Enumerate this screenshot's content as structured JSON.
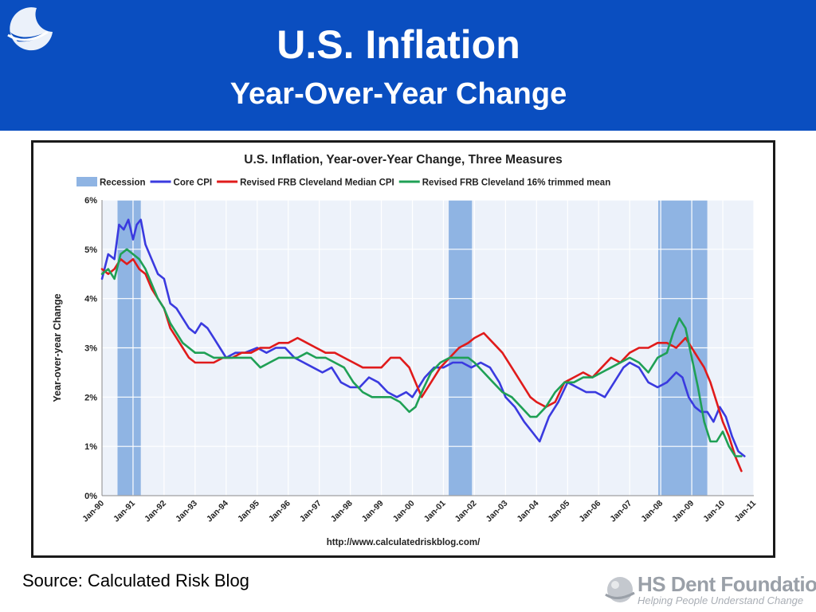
{
  "slide": {
    "title": "U.S. Inflation",
    "subtitle": "Year-Over-Year Change",
    "source": "Source: Calculated Risk Blog",
    "logo_name": "HS Dent Foundation",
    "logo_tagline": "Helping People Understand Change",
    "header_color": "#0a4ec0"
  },
  "chart_data": {
    "type": "line",
    "title": "U.S. Inflation, Year-over-Year Change, Three Measures",
    "ylabel": "Year-over-year Change",
    "xlabel": "",
    "url": "http://www.calculatedriskblog.com/",
    "ylim": [
      0,
      6
    ],
    "xlim": [
      1990.0,
      2011.0
    ],
    "yticks": [
      0,
      1,
      2,
      3,
      4,
      5,
      6
    ],
    "ytick_labels": [
      "0%",
      "1%",
      "2%",
      "3%",
      "4%",
      "5%",
      "6%"
    ],
    "xticks": [
      1990,
      1991,
      1992,
      1993,
      1994,
      1995,
      1996,
      1997,
      1998,
      1999,
      2000,
      2001,
      2002,
      2003,
      2004,
      2005,
      2006,
      2007,
      2008,
      2009,
      2010,
      2011
    ],
    "xtick_labels": [
      "Jan-90",
      "Jan-91",
      "Jan-92",
      "Jan-93",
      "Jan-94",
      "Jan-95",
      "Jan-96",
      "Jan-97",
      "Jan-98",
      "Jan-99",
      "Jan-00",
      "Jan-01",
      "Jan-02",
      "Jan-03",
      "Jan-04",
      "Jan-05",
      "Jan-06",
      "Jan-07",
      "Jan-08",
      "Jan-09",
      "Jan-10",
      "Jan-11"
    ],
    "grid": true,
    "legend_position": "top",
    "recessions": [
      {
        "label": "Recession",
        "start": 1990.5,
        "end": 1991.25
      },
      {
        "label": "Recession",
        "start": 2001.17,
        "end": 2001.92
      },
      {
        "label": "Recession",
        "start": 2007.92,
        "end": 2009.5
      }
    ],
    "legend": [
      {
        "name": "Recession",
        "color": "#8fb4e3",
        "kind": "box"
      },
      {
        "name": "Core CPI",
        "color": "#3a3adf",
        "kind": "line"
      },
      {
        "name": "Revised FRB Cleveland Median CPI",
        "color": "#e01b1b",
        "kind": "line"
      },
      {
        "name": "Revised FRB Cleveland 16% trimmed mean",
        "color": "#1fa055",
        "kind": "line"
      }
    ],
    "series": [
      {
        "name": "Core CPI",
        "color": "#3a3adf",
        "x": [
          1990.0,
          1990.2,
          1990.4,
          1990.55,
          1990.7,
          1990.85,
          1991.0,
          1991.12,
          1991.25,
          1991.4,
          1991.6,
          1991.8,
          1992.0,
          1992.2,
          1992.4,
          1992.6,
          1992.8,
          1993.0,
          1993.2,
          1993.4,
          1993.6,
          1993.8,
          1994.0,
          1994.3,
          1994.6,
          1995.0,
          1995.3,
          1995.6,
          1995.9,
          1996.2,
          1996.5,
          1996.8,
          1997.1,
          1997.4,
          1997.7,
          1998.0,
          1998.3,
          1998.6,
          1998.9,
          1999.2,
          1999.5,
          1999.8,
          2000.0,
          2000.2,
          2000.4,
          2000.7,
          2001.0,
          2001.3,
          2001.6,
          2001.9,
          2002.2,
          2002.5,
          2002.8,
          2003.0,
          2003.3,
          2003.6,
          2003.85,
          2004.1,
          2004.4,
          2004.7,
          2005.0,
          2005.3,
          2005.6,
          2005.9,
          2006.2,
          2006.5,
          2006.8,
          2007.0,
          2007.3,
          2007.6,
          2007.9,
          2008.2,
          2008.5,
          2008.7,
          2008.9,
          2009.1,
          2009.3,
          2009.5,
          2009.7,
          2009.9,
          2010.1,
          2010.3,
          2010.5,
          2010.7
        ],
        "y": [
          4.4,
          4.9,
          4.8,
          5.5,
          5.4,
          5.6,
          5.2,
          5.5,
          5.6,
          5.1,
          4.8,
          4.5,
          4.4,
          3.9,
          3.8,
          3.6,
          3.4,
          3.3,
          3.5,
          3.4,
          3.2,
          3.0,
          2.8,
          2.9,
          2.9,
          3.0,
          2.9,
          3.0,
          3.0,
          2.8,
          2.7,
          2.6,
          2.5,
          2.6,
          2.3,
          2.2,
          2.2,
          2.4,
          2.3,
          2.1,
          2.0,
          2.1,
          2.0,
          2.2,
          2.4,
          2.6,
          2.6,
          2.7,
          2.7,
          2.6,
          2.7,
          2.6,
          2.3,
          2.0,
          1.8,
          1.5,
          1.3,
          1.1,
          1.6,
          1.9,
          2.3,
          2.2,
          2.1,
          2.1,
          2.0,
          2.3,
          2.6,
          2.7,
          2.6,
          2.3,
          2.2,
          2.3,
          2.5,
          2.4,
          2.0,
          1.8,
          1.7,
          1.7,
          1.5,
          1.8,
          1.6,
          1.2,
          0.9,
          0.8
        ]
      },
      {
        "name": "Revised FRB Cleveland Median CPI",
        "color": "#e01b1b",
        "x": [
          1990.0,
          1990.2,
          1990.4,
          1990.6,
          1990.8,
          1991.0,
          1991.2,
          1991.4,
          1991.6,
          1991.8,
          1992.0,
          1992.2,
          1992.4,
          1992.6,
          1992.8,
          1993.0,
          1993.3,
          1993.6,
          1993.9,
          1994.2,
          1994.5,
          1994.8,
          1995.1,
          1995.4,
          1995.7,
          1996.0,
          1996.3,
          1996.6,
          1996.9,
          1997.2,
          1997.5,
          1997.8,
          1998.1,
          1998.4,
          1998.7,
          1999.0,
          1999.3,
          1999.6,
          1999.9,
          2000.1,
          2000.3,
          2000.6,
          2000.9,
          2001.2,
          2001.5,
          2001.8,
          2002.0,
          2002.3,
          2002.6,
          2002.9,
          2003.2,
          2003.5,
          2003.8,
          2004.0,
          2004.3,
          2004.6,
          2004.9,
          2005.2,
          2005.5,
          2005.8,
          2006.1,
          2006.4,
          2006.7,
          2007.0,
          2007.3,
          2007.6,
          2007.9,
          2008.2,
          2008.5,
          2008.8,
          2009.0,
          2009.2,
          2009.4,
          2009.6,
          2009.8,
          2010.0,
          2010.2,
          2010.4,
          2010.6
        ],
        "y": [
          4.6,
          4.5,
          4.6,
          4.8,
          4.7,
          4.8,
          4.6,
          4.5,
          4.2,
          4.0,
          3.8,
          3.4,
          3.2,
          3.0,
          2.8,
          2.7,
          2.7,
          2.7,
          2.8,
          2.8,
          2.9,
          2.9,
          3.0,
          3.0,
          3.1,
          3.1,
          3.2,
          3.1,
          3.0,
          2.9,
          2.9,
          2.8,
          2.7,
          2.6,
          2.6,
          2.6,
          2.8,
          2.8,
          2.6,
          2.3,
          2.0,
          2.3,
          2.6,
          2.8,
          3.0,
          3.1,
          3.2,
          3.3,
          3.1,
          2.9,
          2.6,
          2.3,
          2.0,
          1.9,
          1.8,
          1.9,
          2.3,
          2.4,
          2.5,
          2.4,
          2.6,
          2.8,
          2.7,
          2.9,
          3.0,
          3.0,
          3.1,
          3.1,
          3.0,
          3.2,
          3.0,
          2.8,
          2.6,
          2.3,
          1.9,
          1.5,
          1.2,
          0.8,
          0.5
        ]
      },
      {
        "name": "Revised FRB Cleveland 16% trimmed mean",
        "color": "#1fa055",
        "x": [
          1990.0,
          1990.2,
          1990.4,
          1990.6,
          1990.8,
          1991.0,
          1991.2,
          1991.4,
          1991.6,
          1991.8,
          1992.0,
          1992.2,
          1992.4,
          1992.6,
          1992.8,
          1993.0,
          1993.3,
          1993.6,
          1993.9,
          1994.2,
          1994.5,
          1994.8,
          1995.1,
          1995.4,
          1995.7,
          1996.0,
          1996.3,
          1996.6,
          1996.9,
          1997.2,
          1997.5,
          1997.8,
          1998.1,
          1998.4,
          1998.7,
          1999.0,
          1999.3,
          1999.6,
          1999.9,
          2000.1,
          2000.3,
          2000.6,
          2000.9,
          2001.2,
          2001.5,
          2001.8,
          2002.0,
          2002.3,
          2002.6,
          2002.9,
          2003.2,
          2003.5,
          2003.8,
          2004.0,
          2004.3,
          2004.6,
          2004.9,
          2005.2,
          2005.5,
          2005.8,
          2006.1,
          2006.4,
          2006.7,
          2007.0,
          2007.3,
          2007.6,
          2007.9,
          2008.2,
          2008.4,
          2008.6,
          2008.8,
          2009.0,
          2009.2,
          2009.4,
          2009.6,
          2009.8,
          2010.0,
          2010.2,
          2010.4,
          2010.6
        ],
        "y": [
          4.5,
          4.6,
          4.4,
          4.9,
          5.0,
          4.9,
          4.8,
          4.6,
          4.3,
          4.0,
          3.8,
          3.5,
          3.3,
          3.1,
          3.0,
          2.9,
          2.9,
          2.8,
          2.8,
          2.8,
          2.8,
          2.8,
          2.6,
          2.7,
          2.8,
          2.8,
          2.8,
          2.9,
          2.8,
          2.8,
          2.7,
          2.6,
          2.3,
          2.1,
          2.0,
          2.0,
          2.0,
          1.9,
          1.7,
          1.8,
          2.1,
          2.5,
          2.7,
          2.8,
          2.8,
          2.8,
          2.7,
          2.5,
          2.3,
          2.1,
          2.0,
          1.8,
          1.6,
          1.6,
          1.8,
          2.1,
          2.3,
          2.3,
          2.4,
          2.4,
          2.5,
          2.6,
          2.7,
          2.8,
          2.7,
          2.5,
          2.8,
          2.9,
          3.3,
          3.6,
          3.4,
          2.8,
          2.2,
          1.5,
          1.1,
          1.1,
          1.3,
          1.0,
          0.8,
          0.8
        ]
      }
    ]
  }
}
